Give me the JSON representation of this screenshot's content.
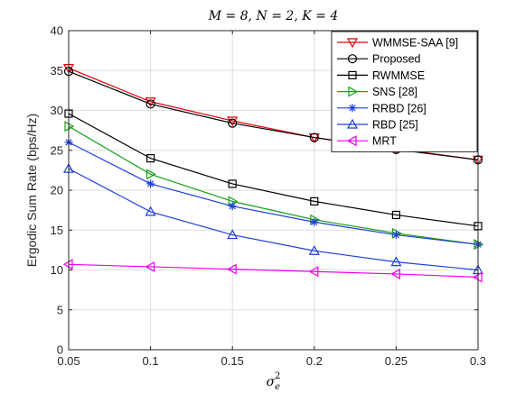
{
  "chart_data": {
    "type": "line",
    "title": "M = 8, N = 2, K = 4",
    "xlabel": "σ_e^2",
    "ylabel": "Ergodic Sum Rate (bps/Hz)",
    "xlim": [
      0.05,
      0.3
    ],
    "ylim": [
      0,
      40
    ],
    "x_ticks": [
      "0.05",
      "0.1",
      "0.15",
      "0.2",
      "0.25",
      "0.3"
    ],
    "y_ticks": [
      "0",
      "5",
      "10",
      "15",
      "20",
      "25",
      "30",
      "35",
      "40"
    ],
    "grid": true,
    "legend_position": "top-right",
    "x": [
      0.05,
      0.1,
      0.15,
      0.2,
      0.25,
      0.3
    ],
    "series": [
      {
        "name": "WMMSE-SAA [9]",
        "color": "#e8000b",
        "marker": "triangle-down",
        "values": [
          35.3,
          31.1,
          28.7,
          26.6,
          25.2,
          23.8
        ]
      },
      {
        "name": "Proposed",
        "color": "#000000",
        "marker": "circle",
        "values": [
          34.9,
          30.8,
          28.4,
          26.6,
          25.1,
          23.8
        ]
      },
      {
        "name": "RWMMSE",
        "color": "#000000",
        "marker": "square",
        "values": [
          29.6,
          24.0,
          20.8,
          18.6,
          16.9,
          15.5
        ]
      },
      {
        "name": "SNS [28]",
        "color": "#1aa11a",
        "marker": "triangle-right",
        "values": [
          28.0,
          22.0,
          18.6,
          16.3,
          14.6,
          13.2
        ]
      },
      {
        "name": "RRBD [26]",
        "color": "#1f3fdd",
        "marker": "asterisk",
        "values": [
          26.0,
          20.8,
          18.0,
          16.0,
          14.4,
          13.2
        ]
      },
      {
        "name": "RBD [25]",
        "color": "#1f3fdd",
        "marker": "triangle-up",
        "values": [
          22.7,
          17.3,
          14.4,
          12.4,
          11.0,
          10.0
        ]
      },
      {
        "name": "MRT",
        "color": "#ee00ee",
        "marker": "triangle-left",
        "values": [
          10.7,
          10.4,
          10.1,
          9.8,
          9.5,
          9.1
        ]
      }
    ]
  }
}
